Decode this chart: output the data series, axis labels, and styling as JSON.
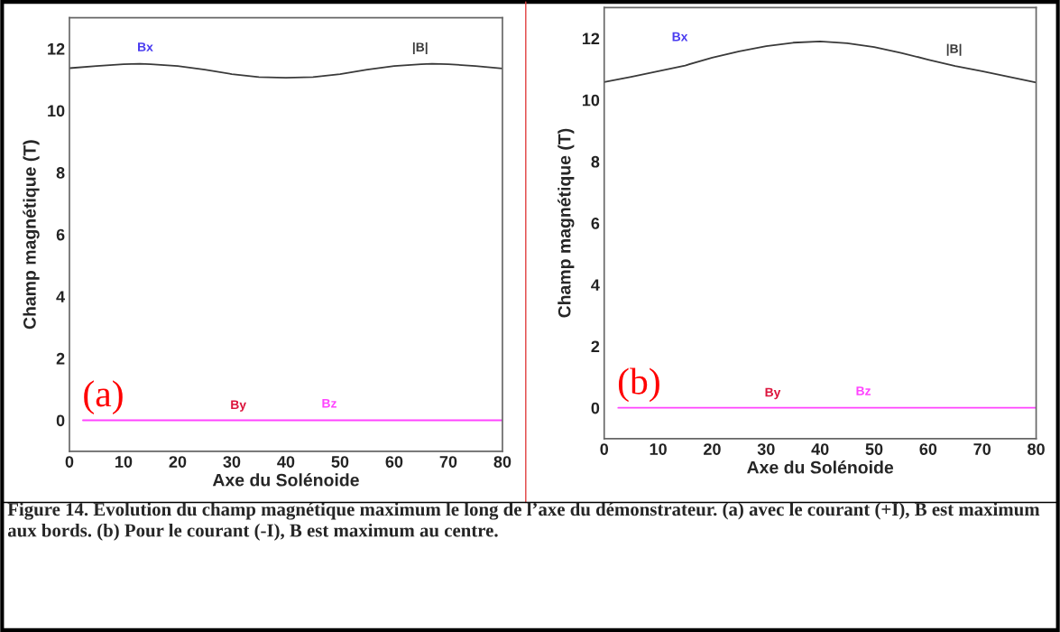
{
  "chart_data": [
    {
      "type": "line",
      "xlabel": "Axe du Solénoide",
      "ylabel": "Champ magnétique (T)",
      "xlim": [
        0,
        80
      ],
      "xticks": [
        0,
        10,
        20,
        30,
        40,
        50,
        60,
        70,
        80
      ],
      "ylim": [
        -1,
        13
      ],
      "yticks": [
        0,
        2,
        4,
        6,
        8,
        10,
        12
      ],
      "grid": false,
      "marker": "none",
      "line_style": "solid",
      "series": [
        {
          "name": "|B|",
          "color": "#3a3a3a",
          "x": [
            0,
            5,
            10,
            13,
            15,
            20,
            25,
            30,
            35,
            40,
            45,
            50,
            55,
            60,
            65,
            67,
            70,
            75,
            80
          ],
          "values": [
            11.37,
            11.44,
            11.5,
            11.51,
            11.5,
            11.44,
            11.32,
            11.18,
            11.08,
            11.06,
            11.08,
            11.18,
            11.32,
            11.44,
            11.5,
            11.51,
            11.5,
            11.44,
            11.36
          ]
        },
        {
          "name": "Bz",
          "color": "#ff44ff",
          "x": [
            2.5,
            80
          ],
          "values": [
            0,
            0
          ]
        }
      ],
      "annotations": [
        "Bx",
        "By",
        "(a)",
        "Figure 14. Evolution du champ magnétique maximum le long de l’axe du démonstrateur. (a) avec le courant (+I), B est maximum aux bords. (b) Pour le courant (-I), B est maximum au centre."
      ]
    },
    {
      "type": "line",
      "xlabel": "Axe du Solénoide",
      "ylabel": "Champ magnétique (T)",
      "xlim": [
        0,
        80
      ],
      "xticks": [
        0,
        10,
        20,
        30,
        40,
        50,
        60,
        70,
        80
      ],
      "ylim": [
        -1,
        13
      ],
      "yticks": [
        0,
        2,
        4,
        6,
        8,
        10,
        12
      ],
      "grid": false,
      "marker": "none",
      "line_style": "solid",
      "series": [
        {
          "name": "|B|",
          "color": "#3a3a3a",
          "x": [
            0,
            5,
            10,
            15,
            20,
            25,
            30,
            35,
            40,
            45,
            50,
            55,
            60,
            65,
            70,
            75,
            80
          ],
          "values": [
            10.58,
            10.75,
            10.93,
            11.12,
            11.37,
            11.58,
            11.75,
            11.86,
            11.9,
            11.84,
            11.72,
            11.53,
            11.31,
            11.1,
            10.93,
            10.75,
            10.57
          ]
        },
        {
          "name": "Bz",
          "color": "#ff44ff",
          "x": [
            2.6,
            80
          ],
          "values": [
            0,
            0
          ]
        }
      ],
      "annotations": [
        "Bx",
        "By",
        "(b)"
      ]
    }
  ]
}
